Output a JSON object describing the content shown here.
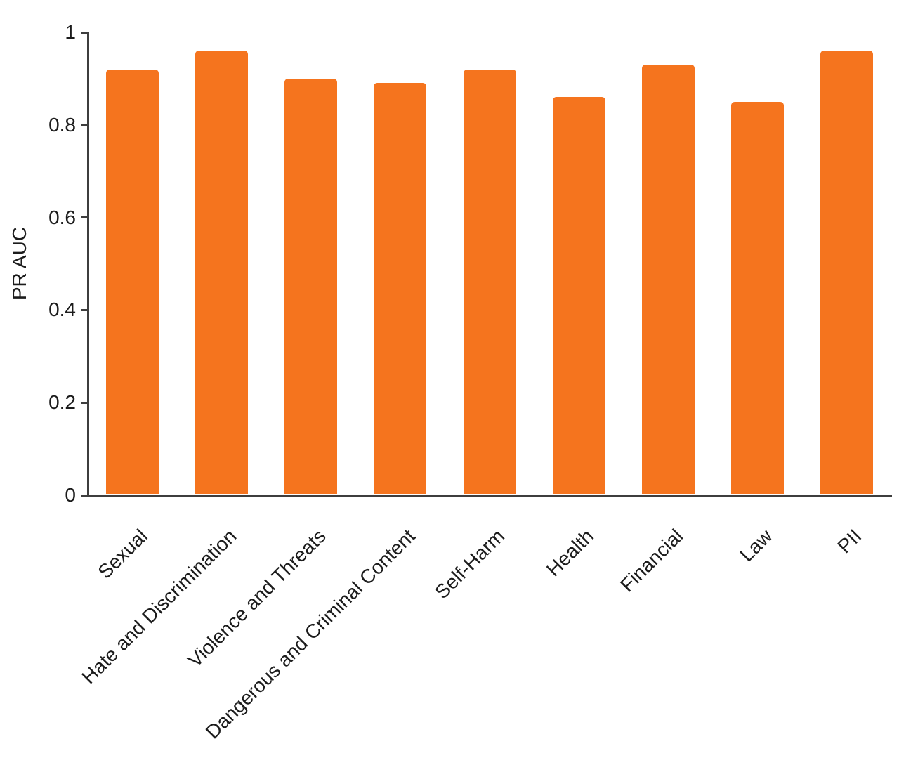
{
  "chart_data": {
    "type": "bar",
    "title": "",
    "xlabel": "",
    "ylabel": "PR AUC",
    "categories": [
      "Sexual",
      "Hate and Discrimination",
      "Violence and Threats",
      "Dangerous and Criminal Content",
      "Self-Harm",
      "Health",
      "Financial",
      "Law",
      "PII"
    ],
    "values": [
      0.92,
      0.96,
      0.9,
      0.89,
      0.92,
      0.86,
      0.93,
      0.85,
      0.96
    ],
    "ylim": [
      0,
      1
    ],
    "yticks": [
      0,
      0.2,
      0.4,
      0.6,
      0.8,
      1
    ],
    "ytick_labels": [
      "0",
      "0.2",
      "0.4",
      "0.6",
      "0.8",
      "1"
    ],
    "grid": false,
    "legend": "none",
    "bar_color": "#F5741E",
    "axis_color": "#3E3E3E",
    "text_color": "#1C1C1C",
    "background_color": "#FFFFFF"
  }
}
